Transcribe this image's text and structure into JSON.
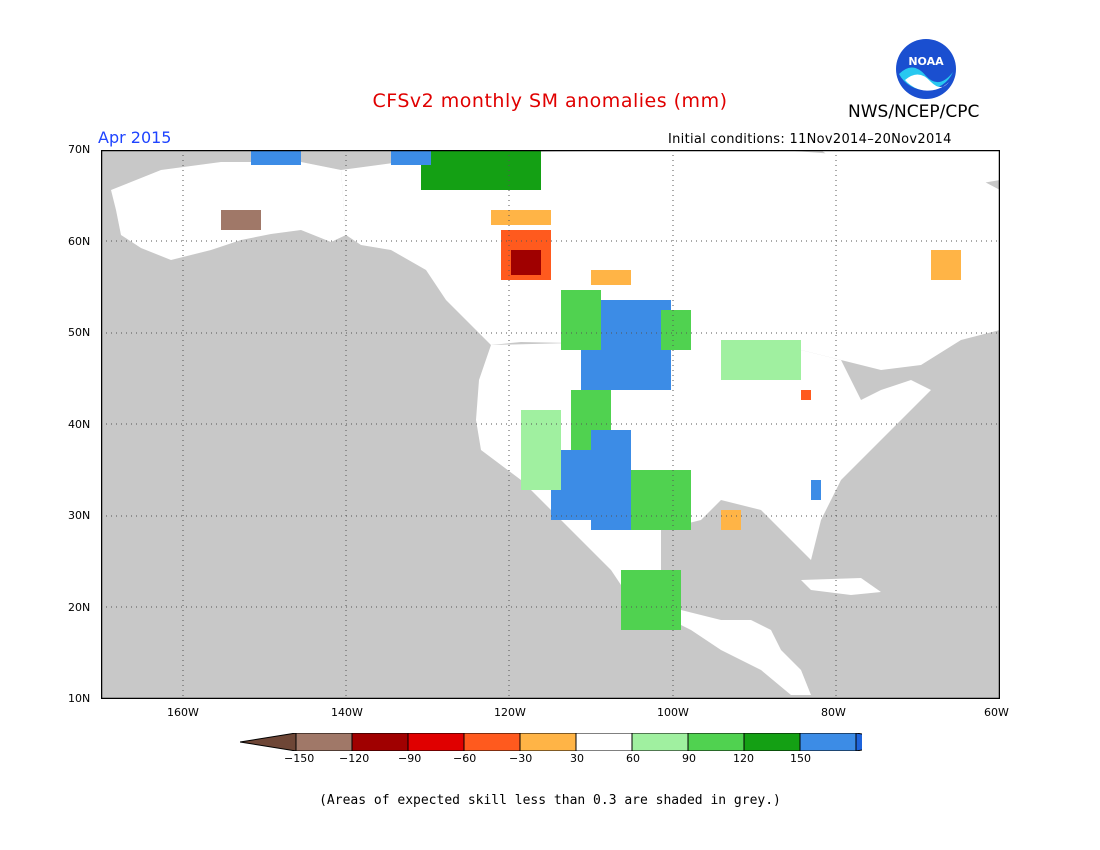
{
  "title": "CFSv2 monthly SM anomalies (mm)",
  "agency": "NWS/NCEP/CPC",
  "month": "Apr 2015",
  "initial_conditions": "Initial conditions: 11Nov2014–20Nov2014",
  "note": "(Areas of expected skill less than 0.3 are shaded in grey.)",
  "logo_text": "NOAA",
  "map": {
    "extent": {
      "lon_min": -170,
      "lon_max": -60,
      "lat_min": 10,
      "lat_max": 70
    },
    "lat_labels": [
      "70N",
      "60N",
      "50N",
      "40N",
      "30N",
      "20N",
      "10N"
    ],
    "lon_labels": [
      "160W",
      "140W",
      "120W",
      "100W",
      "80W",
      "60W"
    ],
    "colors": {
      "land_skill": "#ffffff",
      "low_skill": "#c8c8c8",
      "ocean": "#c8c8c8"
    }
  },
  "colorbar": {
    "labels": [
      "−150",
      "−120",
      "−90",
      "−60",
      "−30",
      "30",
      "60",
      "90",
      "120",
      "150"
    ],
    "colors": [
      "#6e4636",
      "#a07868",
      "#a00000",
      "#e00000",
      "#ff5a1e",
      "#ffb446",
      "#ffffff",
      "#a0f0a0",
      "#50d250",
      "#14a014",
      "#3c8ce6",
      "#1e64dc"
    ]
  }
}
